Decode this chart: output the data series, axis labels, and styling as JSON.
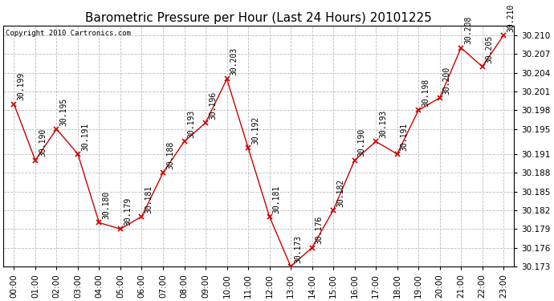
{
  "title": "Barometric Pressure per Hour (Last 24 Hours) 20101225",
  "copyright": "Copyright 2010 Cartronics.com",
  "hours": [
    "00:00",
    "01:00",
    "02:00",
    "03:00",
    "04:00",
    "05:00",
    "06:00",
    "07:00",
    "08:00",
    "09:00",
    "10:00",
    "11:00",
    "12:00",
    "13:00",
    "14:00",
    "15:00",
    "16:00",
    "17:00",
    "18:00",
    "19:00",
    "20:00",
    "21:00",
    "22:00",
    "23:00"
  ],
  "values": [
    30.199,
    30.19,
    30.195,
    30.191,
    30.18,
    30.179,
    30.181,
    30.188,
    30.193,
    30.196,
    30.203,
    30.192,
    30.181,
    30.173,
    30.176,
    30.182,
    30.19,
    30.193,
    30.191,
    30.198,
    30.2,
    30.208,
    30.205,
    30.21
  ],
  "labels": [
    "30.199",
    "30.190",
    "30.195",
    "30.191",
    "30.180",
    "30.179",
    "30.181",
    "30.188",
    "30.193",
    "30.196",
    "30.203",
    "30.192",
    "30.181",
    "30.173",
    "30.176",
    "30.182",
    "30.190",
    "30.193",
    "30.191",
    "30.198",
    "30.200",
    "30.208",
    "30.205",
    "30.210"
  ],
  "line_color": "#cc0000",
  "marker": "x",
  "marker_color": "#cc0000",
  "bg_color": "#ffffff",
  "plot_bg_color": "#ffffff",
  "grid_color": "#bbbbbb",
  "ylim_min": 30.173,
  "ylim_max": 30.2115,
  "yticks": [
    30.173,
    30.176,
    30.179,
    30.182,
    30.185,
    30.188,
    30.191,
    30.195,
    30.198,
    30.201,
    30.204,
    30.207,
    30.21
  ],
  "title_fontsize": 11,
  "label_fontsize": 7,
  "tick_fontsize": 7.5,
  "copyright_fontsize": 6.5
}
